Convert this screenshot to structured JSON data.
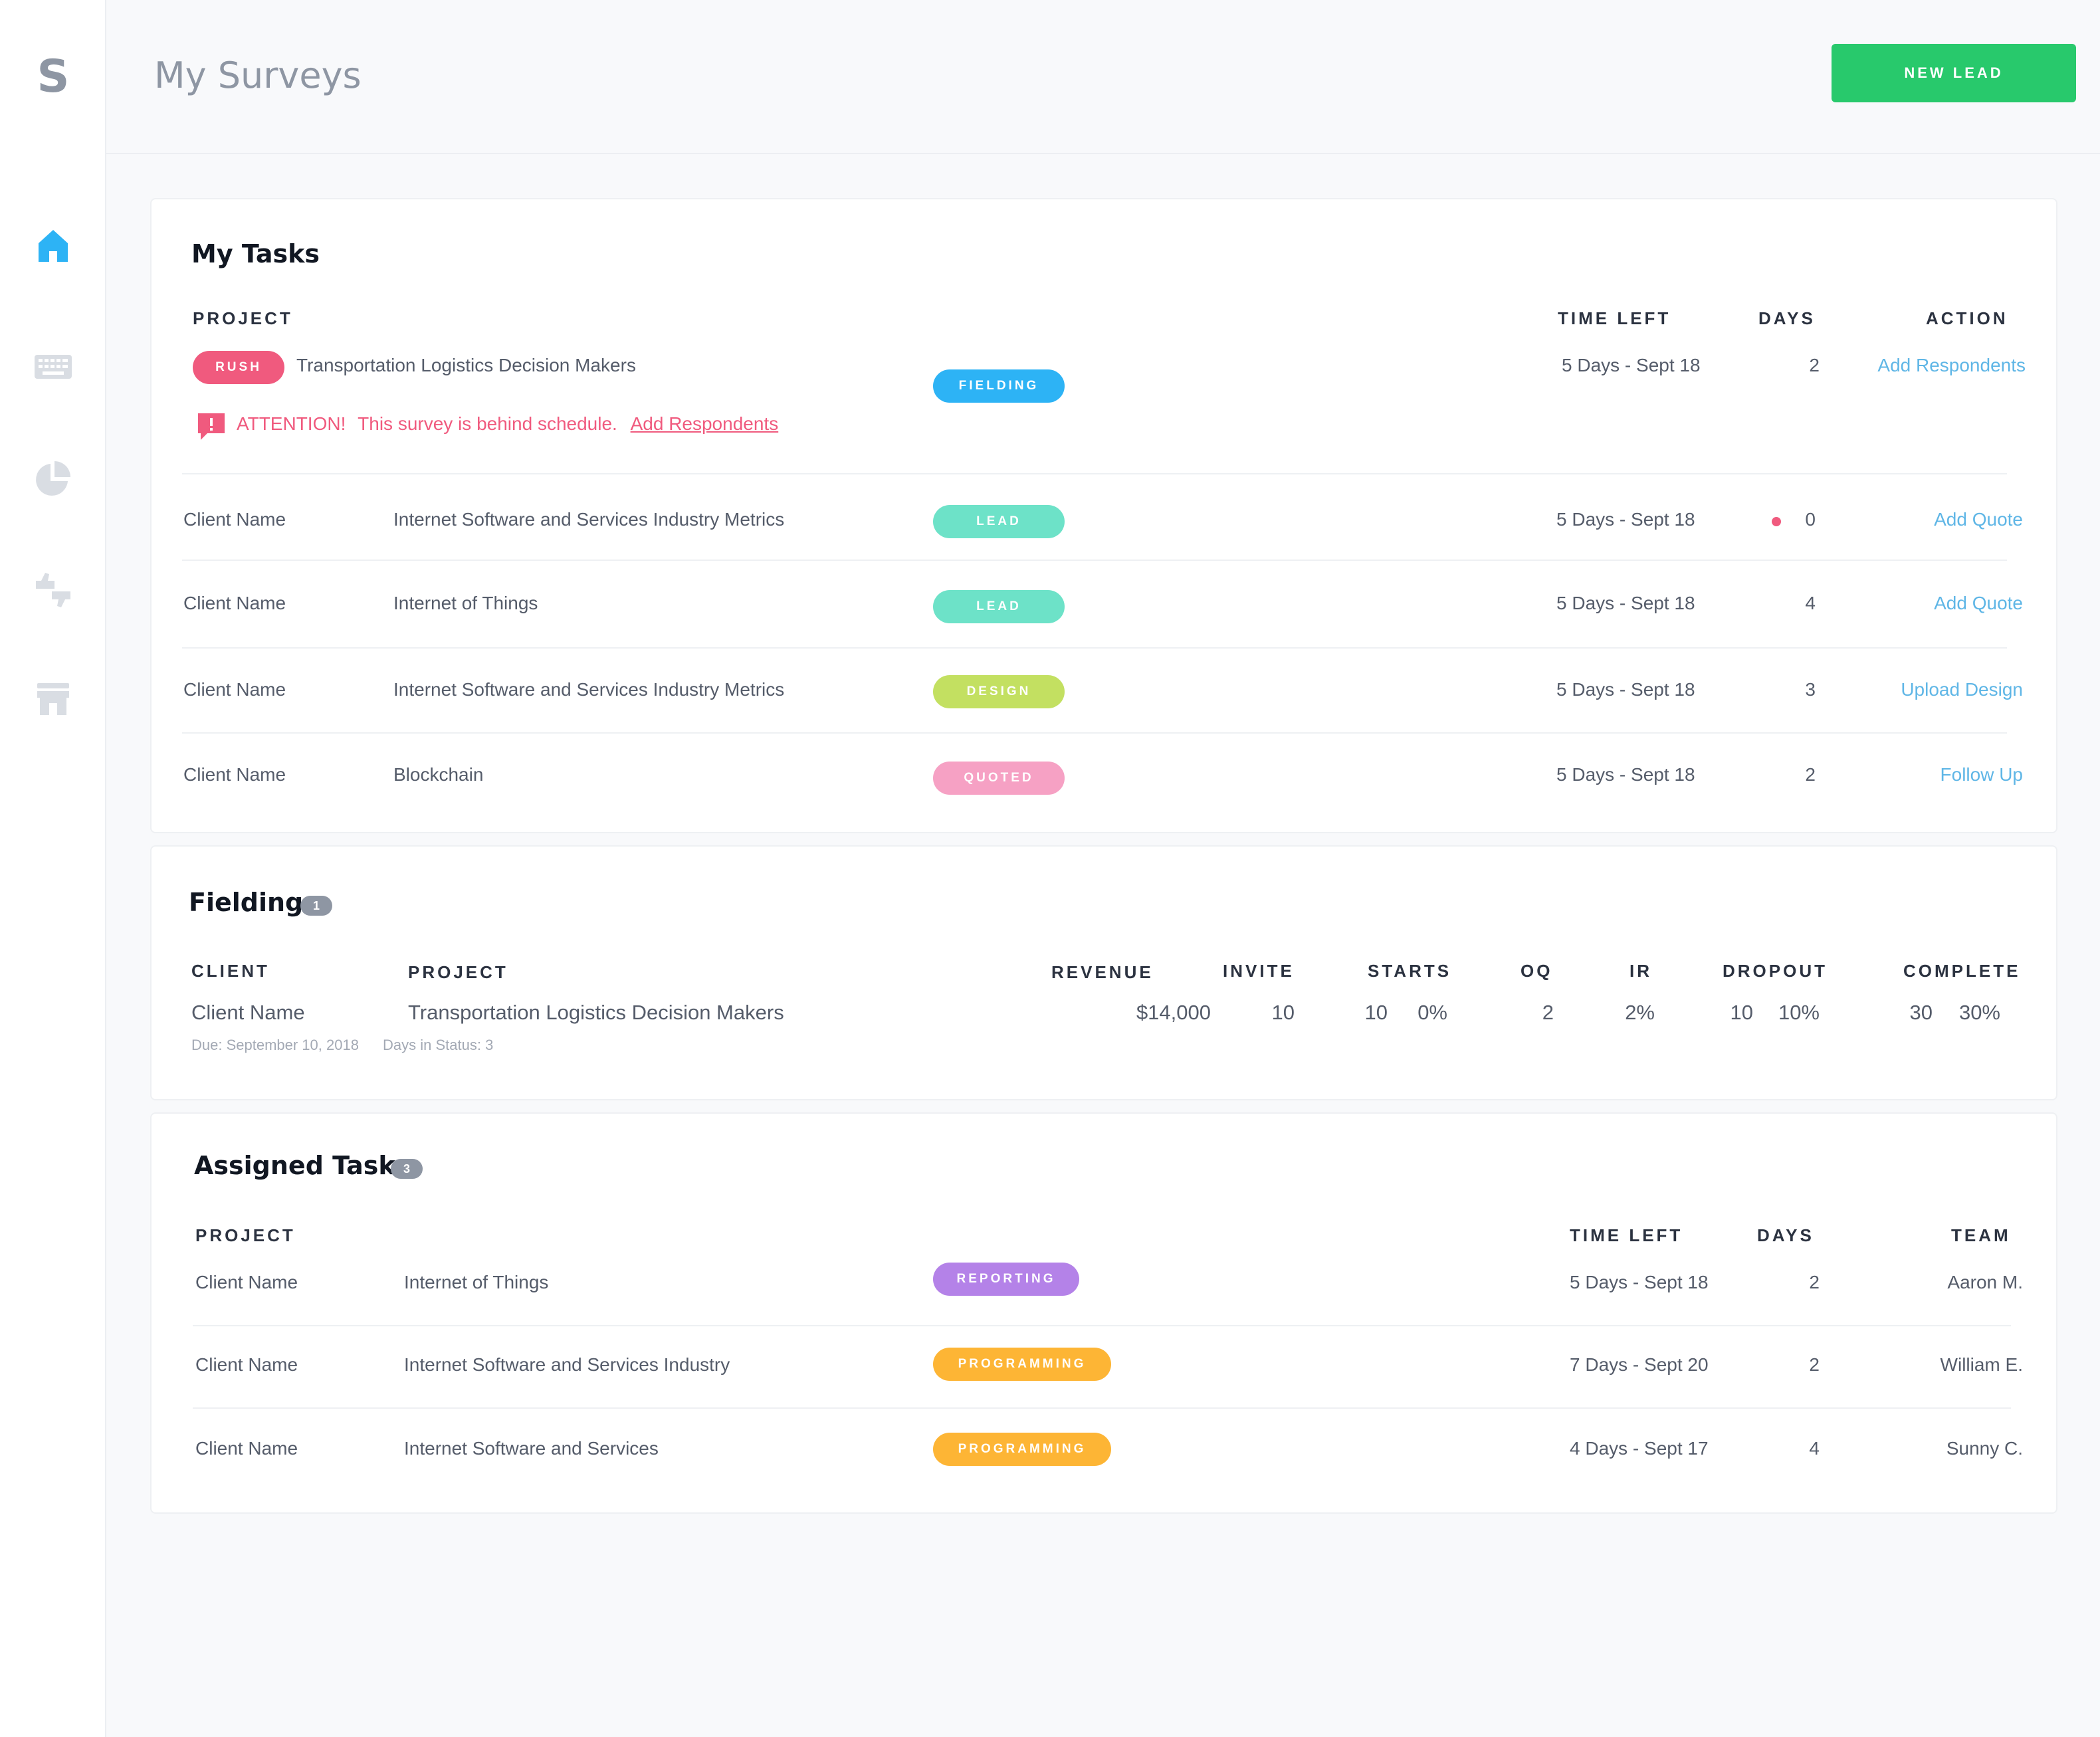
{
  "app": {
    "logo": "S"
  },
  "header": {
    "title": "My Surveys",
    "new_lead_label": "NEW LEAD"
  },
  "colors": {
    "accent_green": "#28c96c",
    "rush": "#f05a7e",
    "fielding": "#2db3f5",
    "lead": "#6de2c8",
    "design": "#c3e061",
    "quoted": "#f6a1c4",
    "reporting": "#b482e8",
    "programming": "#fdb535",
    "link": "#5fb6e6"
  },
  "sidebar": {
    "items": [
      {
        "icon": "home-icon",
        "active": true
      },
      {
        "icon": "keyboard-icon",
        "active": false
      },
      {
        "icon": "pie-chart-icon",
        "active": false
      },
      {
        "icon": "thumbs-icon",
        "active": false
      },
      {
        "icon": "store-icon",
        "active": false
      }
    ]
  },
  "my_tasks": {
    "title": "My Tasks",
    "headers": {
      "project": "PROJECT",
      "time_left": "TIME LEFT",
      "days": "DAYS",
      "action": "ACTION"
    },
    "rush_row": {
      "badge": "RUSH",
      "project": "Transportation Logistics Decision Makers",
      "status": "FIELDING",
      "time_left": "5 Days - Sept 18",
      "days": "2",
      "action": "Add Respondents",
      "alert_title": "ATTENTION!",
      "alert_text": "This survey is behind schedule.",
      "alert_link": "Add Respondents"
    },
    "rows": [
      {
        "client": "Client Name",
        "project": "Internet Software and Services Industry Metrics",
        "status": "LEAD",
        "time_left": "5 Days - Sept 18",
        "days": "0",
        "action": "Add Quote"
      },
      {
        "client": "Client Name",
        "project": "Internet of Things",
        "status": "LEAD",
        "time_left": "5 Days - Sept 18",
        "days": "4",
        "action": "Add Quote"
      },
      {
        "client": "Client Name",
        "project": "Internet Software and Services Industry Metrics",
        "status": "DESIGN",
        "time_left": "5 Days - Sept 18",
        "days": "3",
        "action": "Upload Design"
      },
      {
        "client": "Client Name",
        "project": "Blockchain",
        "status": "QUOTED",
        "time_left": "5 Days - Sept 18",
        "days": "2",
        "action": "Follow Up"
      }
    ]
  },
  "fielding": {
    "title": "Fielding",
    "count": "1",
    "headers": {
      "client": "CLIENT",
      "project": "PROJECT",
      "revenue": "REVENUE",
      "invite": "INVITE",
      "starts": "STARTS",
      "oq": "OQ",
      "ir": "IR",
      "dropout": "DROPOUT",
      "complete": "COMPLETE"
    },
    "row": {
      "client": "Client Name",
      "project": "Transportation Logistics Decision Makers",
      "revenue": "$14,000",
      "invite": "10",
      "starts": "10",
      "starts_pct": "0%",
      "oq": "2",
      "ir": "2%",
      "dropout": "10",
      "dropout_pct": "10%",
      "complete": "30",
      "complete_pct": "30%",
      "due": "Due: September 10, 2018",
      "days_in_status": "Days in Status: 3"
    }
  },
  "assigned": {
    "title": "Assigned Tasks",
    "count": "3",
    "headers": {
      "project": "PROJECT",
      "time_left": "TIME LEFT",
      "days": "DAYS",
      "team": "TEAM"
    },
    "rows": [
      {
        "client": "Client Name",
        "project": "Internet of Things",
        "status": "REPORTING",
        "time_left": "5 Days - Sept 18",
        "days": "2",
        "team": "Aaron M."
      },
      {
        "client": "Client Name",
        "project": "Internet Software and Services Industry",
        "status": "PROGRAMMING",
        "time_left": "7 Days - Sept 20",
        "days": "2",
        "team": "William E."
      },
      {
        "client": "Client Name",
        "project": "Internet Software and Services",
        "status": "PROGRAMMING",
        "time_left": "4 Days - Sept 17",
        "days": "4",
        "team": "Sunny C."
      }
    ]
  }
}
